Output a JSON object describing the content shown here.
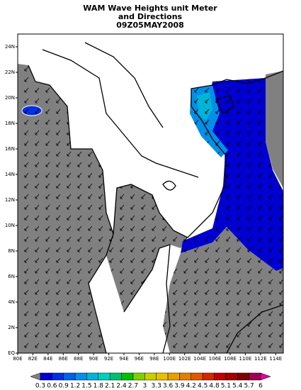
{
  "map": {
    "title": [
      "WAM Wave Heights unit Meter",
      "and Directions",
      "09Z05MAY2008"
    ],
    "xlim": [
      80,
      115
    ],
    "ylim": [
      0,
      25
    ],
    "xticks": [
      {
        "value": 80,
        "label": "80E"
      },
      {
        "value": 82,
        "label": "82E"
      },
      {
        "value": 84,
        "label": "84E"
      },
      {
        "value": 86,
        "label": "86E"
      },
      {
        "value": 88,
        "label": "88E"
      },
      {
        "value": 90,
        "label": "90E"
      },
      {
        "value": 92,
        "label": "92E"
      },
      {
        "value": 94,
        "label": "94E"
      },
      {
        "value": 96,
        "label": "96E"
      },
      {
        "value": 98,
        "label": "98E"
      },
      {
        "value": 100,
        "label": "100E"
      },
      {
        "value": 102,
        "label": "102E"
      },
      {
        "value": 104,
        "label": "104E"
      },
      {
        "value": 106,
        "label": "106E"
      },
      {
        "value": 108,
        "label": "108E"
      },
      {
        "value": 110,
        "label": "110E"
      },
      {
        "value": 112,
        "label": "112E"
      },
      {
        "value": 114,
        "label": "114E"
      }
    ],
    "yticks": [
      {
        "value": 0,
        "label": "EQ"
      },
      {
        "value": 2,
        "label": "2N"
      },
      {
        "value": 4,
        "label": "4N"
      },
      {
        "value": 6,
        "label": "6N"
      },
      {
        "value": 8,
        "label": "8N"
      },
      {
        "value": 10,
        "label": "10N"
      },
      {
        "value": 12,
        "label": "12N"
      },
      {
        "value": 14,
        "label": "14N"
      },
      {
        "value": 16,
        "label": "16N"
      },
      {
        "value": 18,
        "label": "18N"
      },
      {
        "value": 20,
        "label": "20N"
      },
      {
        "value": 22,
        "label": "22N"
      },
      {
        "value": 24,
        "label": "24N"
      }
    ],
    "colorbar": {
      "levels": [
        0.3,
        0.6,
        0.9,
        1.2,
        1.5,
        1.8,
        2.1,
        2.4,
        2.7,
        3,
        3.3,
        3.6,
        3.9,
        4.2,
        4.5,
        4.8,
        5.1,
        5.4,
        5.7,
        6
      ],
      "colors": [
        "#808080",
        "#0000d0",
        "#0030e0",
        "#0060e8",
        "#0090e8",
        "#00b4d8",
        "#00d0c0",
        "#00c070",
        "#00c000",
        "#80d000",
        "#c8d000",
        "#e8c000",
        "#e8a000",
        "#e08000",
        "#e05800",
        "#d02800",
        "#c00000",
        "#a00000",
        "#800000",
        "#a00050",
        "#e000a0"
      ]
    }
  }
}
